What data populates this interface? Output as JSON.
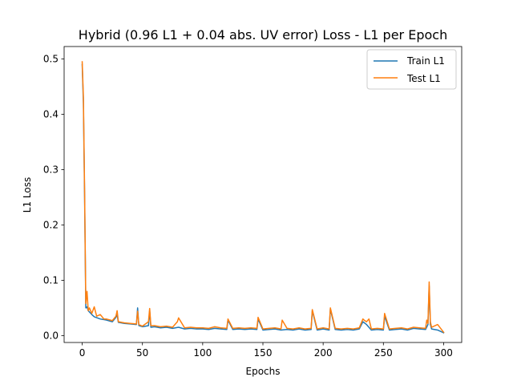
{
  "chart_data": {
    "type": "line",
    "title": "Hybrid (0.96 L1 + 0.04 abs. UV error) Loss - L1 per Epoch",
    "xlabel": "Epochs",
    "ylabel": "L1 Loss",
    "xlim": [
      -15,
      315
    ],
    "ylim": [
      -0.0125,
      0.5225
    ],
    "xticks": [
      0,
      50,
      100,
      150,
      200,
      250,
      300
    ],
    "xtick_labels": [
      "0",
      "50",
      "100",
      "150",
      "200",
      "250",
      "300"
    ],
    "yticks": [
      0.0,
      0.1,
      0.2,
      0.3,
      0.4,
      0.5
    ],
    "ytick_labels": [
      "0.0",
      "0.1",
      "0.2",
      "0.3",
      "0.4",
      "0.5"
    ],
    "grid": false,
    "legend_position": "top-right",
    "colors": {
      "train": "#1f77b4",
      "test": "#ff7f0e",
      "axes": "#000000"
    },
    "series": [
      {
        "name": "Train L1",
        "color": "#1f77b4",
        "x": [
          0,
          1,
          2,
          3,
          4,
          5,
          8,
          10,
          15,
          20,
          25,
          28,
          29,
          30,
          35,
          40,
          45,
          46,
          47,
          50,
          55,
          56,
          57,
          60,
          65,
          70,
          75,
          80,
          85,
          90,
          95,
          100,
          105,
          110,
          115,
          120,
          121,
          125,
          130,
          135,
          140,
          145,
          146,
          150,
          155,
          160,
          165,
          170,
          175,
          180,
          185,
          190,
          191,
          195,
          200,
          205,
          206,
          210,
          215,
          220,
          225,
          230,
          233,
          236,
          240,
          245,
          250,
          251,
          255,
          260,
          265,
          270,
          275,
          280,
          285,
          287,
          288,
          289,
          290,
          295,
          300
        ],
        "y": [
          0.49,
          0.42,
          0.25,
          0.05,
          0.052,
          0.045,
          0.038,
          0.034,
          0.03,
          0.028,
          0.025,
          0.033,
          0.038,
          0.024,
          0.022,
          0.021,
          0.02,
          0.05,
          0.018,
          0.016,
          0.018,
          0.045,
          0.015,
          0.016,
          0.014,
          0.015,
          0.013,
          0.015,
          0.012,
          0.013,
          0.012,
          0.012,
          0.011,
          0.013,
          0.012,
          0.011,
          0.028,
          0.011,
          0.012,
          0.011,
          0.012,
          0.011,
          0.03,
          0.01,
          0.011,
          0.012,
          0.01,
          0.011,
          0.01,
          0.012,
          0.01,
          0.011,
          0.045,
          0.01,
          0.012,
          0.01,
          0.048,
          0.011,
          0.01,
          0.011,
          0.01,
          0.012,
          0.025,
          0.02,
          0.01,
          0.011,
          0.01,
          0.035,
          0.01,
          0.011,
          0.012,
          0.01,
          0.013,
          0.012,
          0.011,
          0.02,
          0.09,
          0.02,
          0.012,
          0.01,
          0.005
        ]
      },
      {
        "name": "Test L1",
        "color": "#ff7f0e",
        "x": [
          0,
          1,
          2,
          3,
          4,
          5,
          6,
          8,
          10,
          12,
          15,
          18,
          20,
          25,
          28,
          29,
          30,
          35,
          40,
          45,
          46,
          47,
          50,
          55,
          56,
          57,
          60,
          65,
          70,
          75,
          79,
          80,
          85,
          90,
          95,
          100,
          105,
          110,
          115,
          120,
          121,
          125,
          130,
          135,
          140,
          145,
          146,
          150,
          155,
          160,
          165,
          166,
          170,
          175,
          180,
          185,
          190,
          191,
          195,
          200,
          205,
          206,
          210,
          215,
          220,
          225,
          230,
          233,
          234,
          236,
          238,
          240,
          245,
          250,
          251,
          255,
          260,
          265,
          270,
          275,
          280,
          285,
          286,
          287,
          288,
          289,
          290,
          295,
          300
        ],
        "y": [
          0.495,
          0.43,
          0.26,
          0.058,
          0.08,
          0.045,
          0.05,
          0.04,
          0.052,
          0.035,
          0.038,
          0.03,
          0.03,
          0.027,
          0.035,
          0.045,
          0.025,
          0.023,
          0.022,
          0.021,
          0.044,
          0.02,
          0.017,
          0.025,
          0.049,
          0.018,
          0.018,
          0.016,
          0.017,
          0.015,
          0.025,
          0.032,
          0.014,
          0.015,
          0.014,
          0.014,
          0.013,
          0.016,
          0.014,
          0.013,
          0.03,
          0.013,
          0.014,
          0.013,
          0.014,
          0.013,
          0.033,
          0.012,
          0.013,
          0.014,
          0.012,
          0.028,
          0.013,
          0.012,
          0.014,
          0.012,
          0.013,
          0.047,
          0.012,
          0.014,
          0.012,
          0.05,
          0.013,
          0.012,
          0.013,
          0.012,
          0.014,
          0.03,
          0.028,
          0.025,
          0.03,
          0.012,
          0.013,
          0.012,
          0.04,
          0.012,
          0.013,
          0.014,
          0.012,
          0.015,
          0.014,
          0.013,
          0.028,
          0.022,
          0.097,
          0.025,
          0.015,
          0.02,
          0.006
        ]
      }
    ]
  }
}
